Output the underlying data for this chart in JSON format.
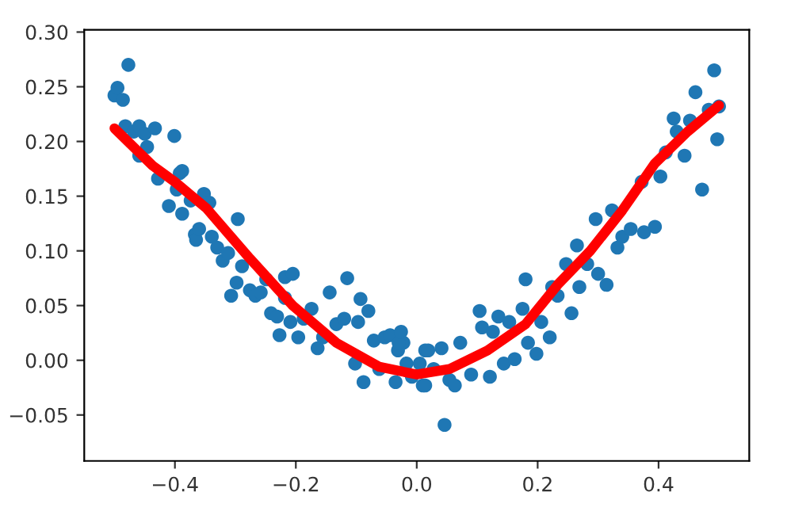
{
  "chart_data": {
    "type": "scatter",
    "xlim": [
      -0.55,
      0.55
    ],
    "ylim": [
      -0.092,
      0.302
    ],
    "xticks": [
      {
        "value": -0.4,
        "label": "−0.4"
      },
      {
        "value": -0.2,
        "label": "−0.2"
      },
      {
        "value": 0.0,
        "label": "0.0"
      },
      {
        "value": 0.2,
        "label": "0.2"
      },
      {
        "value": 0.4,
        "label": "0.4"
      }
    ],
    "yticks": [
      {
        "value": -0.05,
        "label": "−0.05"
      },
      {
        "value": 0.0,
        "label": "0.00"
      },
      {
        "value": 0.05,
        "label": "0.05"
      },
      {
        "value": 0.1,
        "label": "0.10"
      },
      {
        "value": 0.15,
        "label": "0.15"
      },
      {
        "value": 0.2,
        "label": "0.20"
      },
      {
        "value": 0.25,
        "label": "0.25"
      },
      {
        "value": 0.3,
        "label": "0.30"
      }
    ],
    "grid": false,
    "legend": false,
    "series": [
      {
        "color": "#1f77b4",
        "marker": "circle",
        "x": [
          -0.5,
          -0.495,
          -0.486,
          -0.477,
          -0.482,
          -0.468,
          -0.459,
          -0.45,
          -0.446,
          -0.459,
          -0.433,
          -0.428,
          -0.401,
          -0.41,
          -0.392,
          -0.388,
          -0.397,
          -0.388,
          -0.374,
          -0.367,
          -0.365,
          -0.36,
          -0.352,
          -0.343,
          -0.339,
          -0.33,
          -0.321,
          -0.312,
          -0.296,
          -0.307,
          -0.298,
          -0.289,
          -0.276,
          -0.267,
          -0.258,
          -0.249,
          -0.241,
          -0.231,
          -0.227,
          -0.218,
          -0.205,
          -0.218,
          -0.209,
          -0.196,
          -0.187,
          -0.174,
          -0.164,
          -0.155,
          -0.144,
          -0.133,
          -0.115,
          -0.12,
          -0.097,
          -0.093,
          -0.08,
          -0.102,
          -0.088,
          -0.071,
          -0.062,
          -0.053,
          -0.044,
          -0.035,
          -0.031,
          -0.022,
          -0.008,
          0.01,
          0.014,
          -0.03,
          -0.026,
          -0.017,
          0.005,
          0.014,
          0.019,
          0.028,
          0.041,
          0.046,
          0.054,
          0.063,
          0.072,
          0.09,
          0.104,
          0.108,
          0.121,
          0.126,
          0.135,
          0.144,
          0.153,
          0.162,
          0.175,
          0.18,
          0.184,
          0.198,
          0.206,
          0.22,
          0.224,
          0.233,
          0.247,
          0.256,
          0.265,
          0.269,
          0.282,
          0.296,
          0.3,
          0.314,
          0.323,
          0.332,
          0.34,
          0.354,
          0.372,
          0.376,
          0.394,
          0.403,
          0.412,
          0.425,
          0.43,
          0.443,
          0.452,
          0.461,
          0.472,
          0.483,
          0.492,
          0.497,
          0.5
        ],
        "values": [
          0.242,
          0.249,
          0.238,
          0.27,
          0.214,
          0.209,
          0.214,
          0.207,
          0.195,
          0.187,
          0.212,
          0.166,
          0.205,
          0.141,
          0.171,
          0.173,
          0.156,
          0.134,
          0.146,
          0.115,
          0.11,
          0.12,
          0.152,
          0.144,
          0.113,
          0.103,
          0.091,
          0.098,
          0.129,
          0.059,
          0.071,
          0.086,
          0.064,
          0.059,
          0.062,
          0.074,
          0.043,
          0.04,
          0.023,
          0.076,
          0.079,
          0.057,
          0.035,
          0.021,
          0.038,
          0.047,
          0.011,
          0.021,
          0.062,
          0.033,
          0.075,
          0.038,
          0.035,
          0.056,
          0.045,
          -0.003,
          -0.02,
          0.018,
          -0.008,
          0.021,
          0.023,
          -0.02,
          0.009,
          0.016,
          -0.015,
          -0.023,
          0.009,
          0.016,
          0.026,
          -0.003,
          -0.003,
          -0.023,
          0.009,
          -0.008,
          0.011,
          -0.059,
          -0.018,
          -0.023,
          0.016,
          -0.013,
          0.045,
          0.03,
          -0.015,
          0.026,
          0.04,
          -0.003,
          0.035,
          0.001,
          0.047,
          0.074,
          0.016,
          0.006,
          0.035,
          0.021,
          0.067,
          0.059,
          0.088,
          0.043,
          0.105,
          0.067,
          0.088,
          0.129,
          0.079,
          0.069,
          0.137,
          0.103,
          0.113,
          0.12,
          0.163,
          0.117,
          0.122,
          0.168,
          0.19,
          0.221,
          0.209,
          0.187,
          0.219,
          0.245,
          0.156,
          0.229,
          0.265,
          0.202,
          0.232
        ]
      },
      {
        "type": "line",
        "color": "#ff0000",
        "marker": "none",
        "line_style": "solid",
        "x": [
          -0.5,
          -0.437,
          -0.4,
          -0.348,
          -0.276,
          -0.205,
          -0.133,
          -0.062,
          0.0,
          0.054,
          0.117,
          0.18,
          0.233,
          0.287,
          0.34,
          0.394,
          0.448,
          0.5
        ],
        "values": [
          0.212,
          0.178,
          0.163,
          0.139,
          0.093,
          0.05,
          0.016,
          -0.006,
          -0.013,
          -0.008,
          0.009,
          0.033,
          0.069,
          0.1,
          0.137,
          0.18,
          0.209,
          0.233
        ]
      }
    ]
  }
}
